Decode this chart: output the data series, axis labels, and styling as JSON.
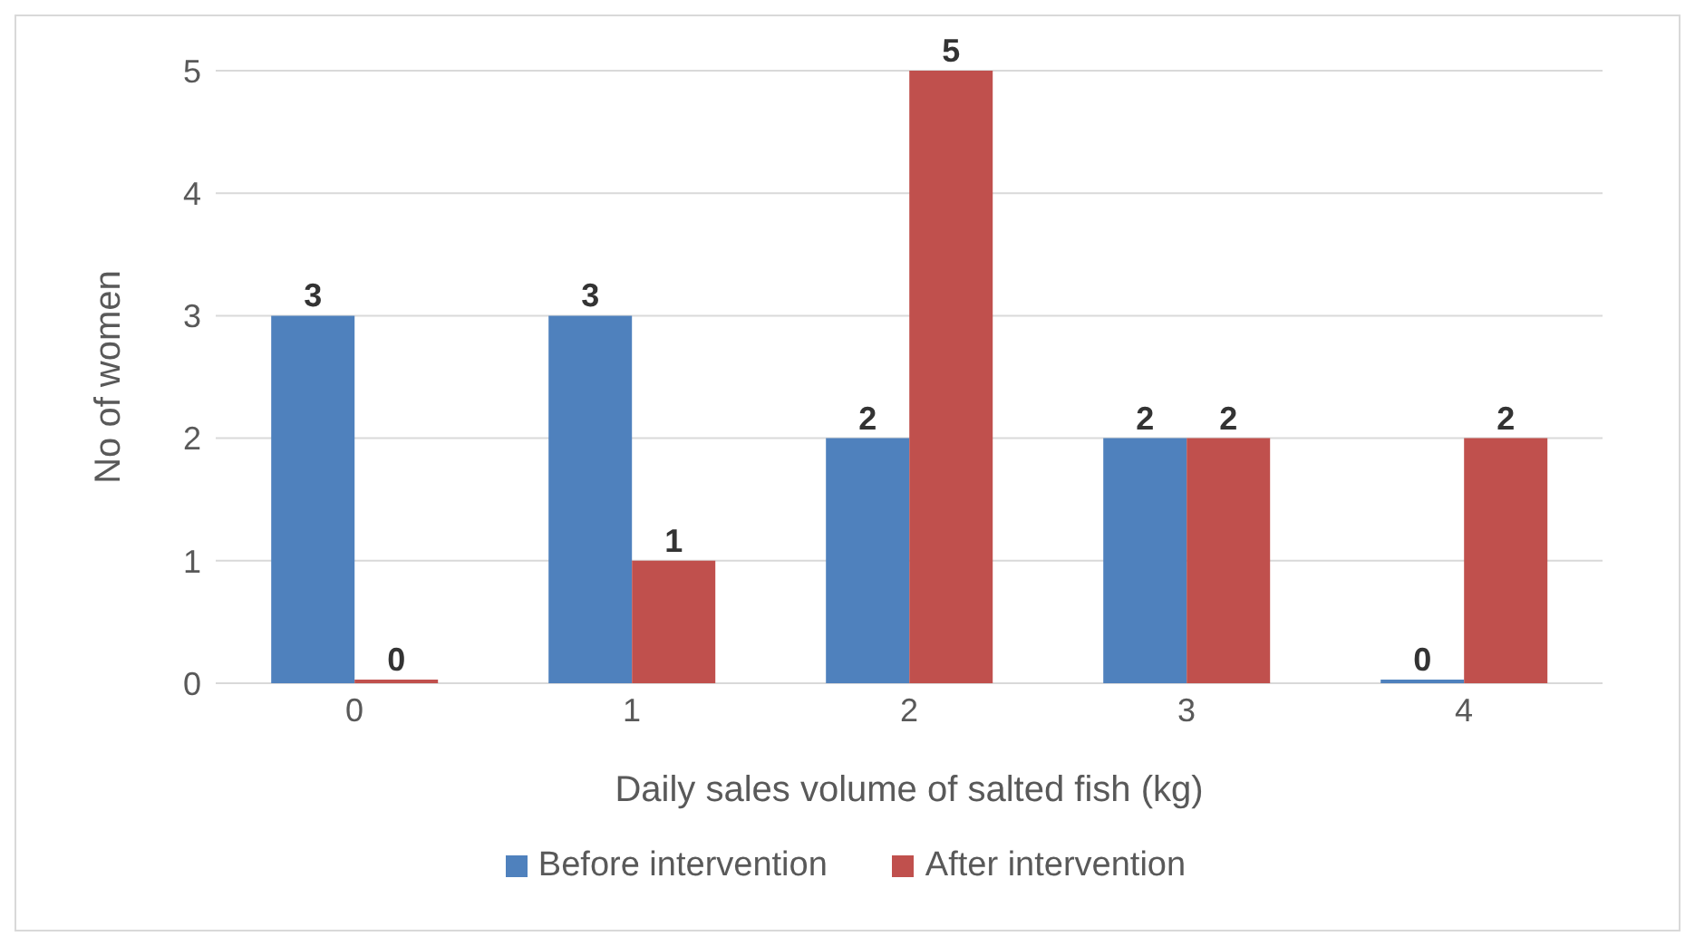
{
  "chart_data": {
    "type": "bar",
    "xlabel": "Daily sales volume of salted fish (kg)",
    "ylabel": "No of women",
    "categories": [
      "0",
      "1",
      "2",
      "3",
      "4"
    ],
    "series": [
      {
        "name": "Before intervention",
        "color": "#4f81bd",
        "values": [
          3,
          3,
          2,
          2,
          0
        ]
      },
      {
        "name": "After intervention",
        "color": "#c0504d",
        "values": [
          0,
          1,
          5,
          2,
          2
        ]
      }
    ],
    "ylim": [
      0,
      5
    ],
    "yticks": [
      0,
      1,
      2,
      3,
      4,
      5
    ],
    "grid": "y",
    "legend": "bottom",
    "data_labels": true
  }
}
